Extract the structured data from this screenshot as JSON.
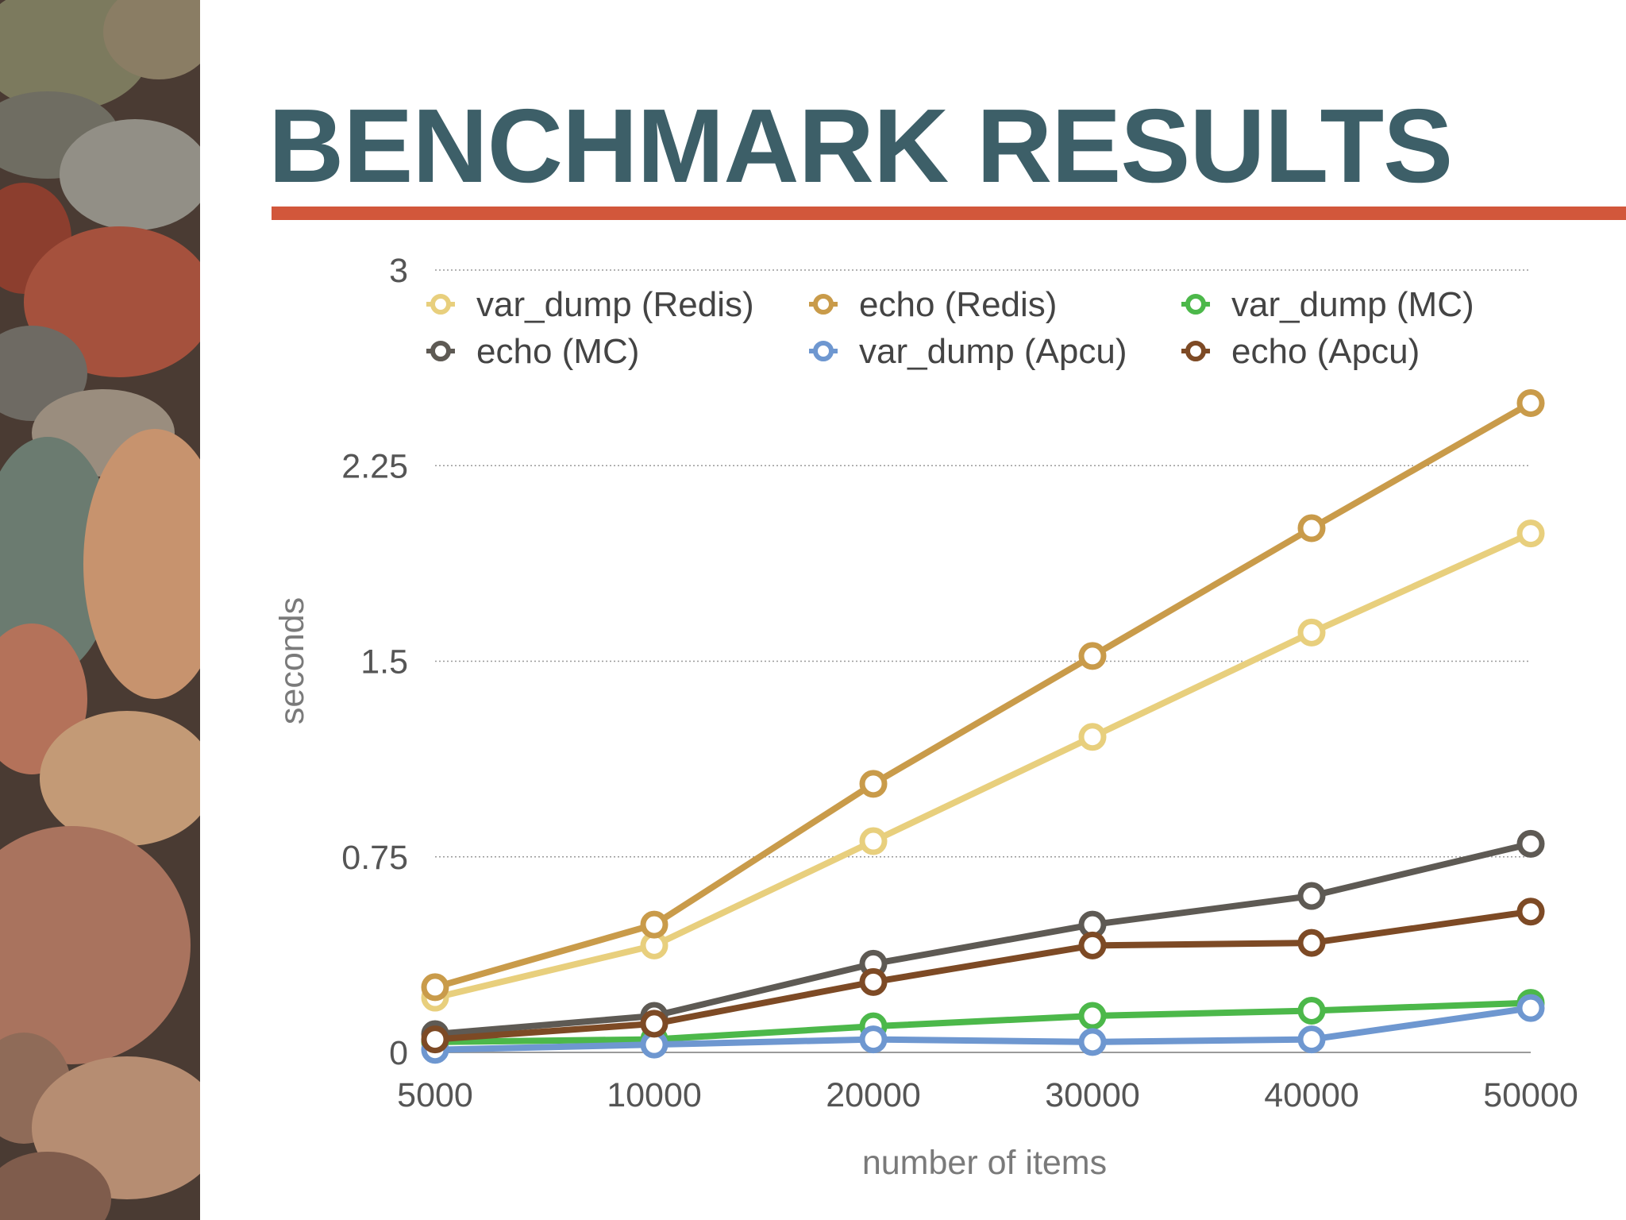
{
  "slide": {
    "title": "BENCHMARK RESULTS"
  },
  "colors": {
    "title": "#3d5f68",
    "rule": "#d2573b"
  },
  "chart_data": {
    "type": "line",
    "title": "",
    "xlabel": "number of items",
    "ylabel": "seconds",
    "categories": [
      "5000",
      "10000",
      "20000",
      "30000",
      "40000",
      "50000"
    ],
    "yticks": [
      "0",
      "0.75",
      "1.5",
      "2.25",
      "3"
    ],
    "ylim": [
      0,
      3
    ],
    "grid": true,
    "legend_position": "top",
    "series": [
      {
        "name": "var_dump (Redis)",
        "color": "#e8cf7d",
        "values": [
          0.21,
          0.41,
          0.81,
          1.21,
          1.61,
          1.99
        ]
      },
      {
        "name": "echo (Redis)",
        "color": "#c99b4a",
        "values": [
          0.25,
          0.49,
          1.03,
          1.52,
          2.01,
          2.49
        ]
      },
      {
        "name": "var_dump (MC)",
        "color": "#4cb84a",
        "values": [
          0.04,
          0.05,
          0.1,
          0.14,
          0.16,
          0.19
        ]
      },
      {
        "name": "echo (MC)",
        "color": "#5e5a54",
        "values": [
          0.07,
          0.14,
          0.34,
          0.49,
          0.6,
          0.8
        ]
      },
      {
        "name": "var_dump (Apcu)",
        "color": "#6e97d0",
        "values": [
          0.01,
          0.03,
          0.05,
          0.04,
          0.05,
          0.17
        ]
      },
      {
        "name": "echo (Apcu)",
        "color": "#7d4a25",
        "values": [
          0.05,
          0.11,
          0.27,
          0.41,
          0.42,
          0.54
        ]
      }
    ]
  }
}
